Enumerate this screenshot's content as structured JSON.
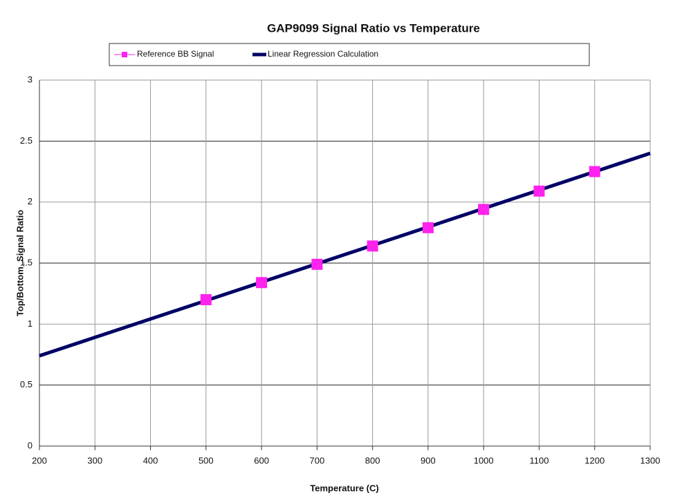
{
  "chart_data": {
    "type": "combo",
    "title": "GAP9099 Signal Ratio vs Temperature",
    "x_label": "Temperature (C)",
    "y_label": "Top/Bottom_Signal Ratio",
    "xlim": [
      200,
      1300
    ],
    "xticks": [
      200,
      300,
      400,
      500,
      600,
      700,
      800,
      900,
      1000,
      1100,
      1200,
      1300
    ],
    "ylim": [
      0,
      3
    ],
    "yticks": [
      0,
      0.5,
      1,
      1.5,
      2,
      2.5,
      3
    ],
    "grid": true,
    "series": [
      {
        "name": "Reference BB Signal",
        "type": "scatter",
        "color": "#ff22ee",
        "x": [
          500,
          600,
          700,
          800,
          900,
          1000,
          1100,
          1200
        ],
        "values": [
          1.2,
          1.34,
          1.49,
          1.64,
          1.79,
          1.94,
          2.09,
          2.25
        ]
      },
      {
        "name": "Linear Regression Calculation",
        "type": "line",
        "color": "#000066",
        "x": [
          200,
          1300
        ],
        "values": [
          0.74,
          2.4
        ]
      }
    ]
  }
}
